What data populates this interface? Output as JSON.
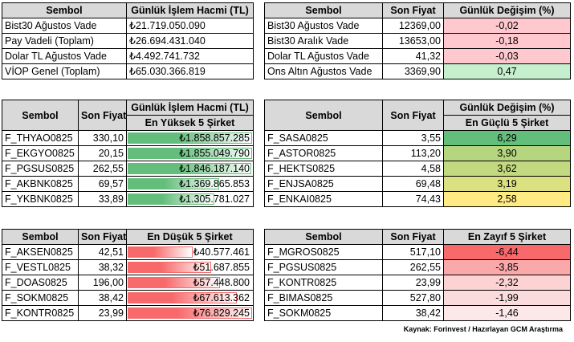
{
  "volume_table": {
    "headers": [
      "Sembol",
      "Günlük İşlem Hacmi (TL)"
    ],
    "rows": [
      [
        "Bist30 Ağustos Vade",
        "₺21.719.050.090"
      ],
      [
        "Pay Vadeli (Toplam)",
        "₺26.694.431.040"
      ],
      [
        "Dolar TL Ağustos Vade",
        "₺4.492.741.732"
      ],
      [
        "VİOP Genel (Toplam)",
        "₺65.030.366.819"
      ]
    ]
  },
  "price_table": {
    "headers": [
      "Sembol",
      "Son Fiyat",
      "Günlük Değişim (%)"
    ],
    "rows": [
      {
        "symbol": "Bist30 Ağustos Vade",
        "price": "12369,00",
        "change": "-0,02",
        "color": "#ffc7ce"
      },
      {
        "symbol": "Bist30 Aralık Vade",
        "price": "13653,00",
        "change": "-0,18",
        "color": "#ffc7ce"
      },
      {
        "symbol": "Dolar TL Ağustos Vade",
        "price": "41,32",
        "change": "-0,03",
        "color": "#ffc7ce"
      },
      {
        "symbol": "Ons Altın Ağustos Vade",
        "price": "3369,90",
        "change": "0,47",
        "color": "#c6efce"
      }
    ]
  },
  "top_volume": {
    "headers": [
      "Sembol",
      "Son Fiyat",
      "Günlük İşlem Hacmi (TL)"
    ],
    "subheader": "En Yüksek 5 Şirket",
    "bar_color": "#63be7b",
    "rows": [
      {
        "symbol": "F_THYAO0825",
        "price": "330,10",
        "volume": "₺1.858.857.285",
        "level": 1.0
      },
      {
        "symbol": "F_EKGYO0825",
        "price": "20,15",
        "volume": "₺1.855.049.790",
        "level": 0.998
      },
      {
        "symbol": "F_PGSUS0825",
        "price": "262,55",
        "volume": "₺1.846.187.140",
        "level": 0.993
      },
      {
        "symbol": "F_AKBNK0825",
        "price": "69,57",
        "volume": "₺1.369.865.853",
        "level": 0.737
      },
      {
        "symbol": "F_YKBNK0825",
        "price": "33,89",
        "volume": "₺1.305.781.027",
        "level": 0.702
      }
    ]
  },
  "top_gainers": {
    "headers": [
      "Sembol",
      "Son Fiyat",
      "Günlük Değişim (%)"
    ],
    "subheader": "En Güçlü 5 Şirket",
    "rows": [
      {
        "symbol": "F_SASA0825",
        "price": "3,55",
        "change": "6,29",
        "color": "#63be7b"
      },
      {
        "symbol": "F_ASTOR0825",
        "price": "113,20",
        "change": "3,90",
        "color": "#b5d57f"
      },
      {
        "symbol": "F_HEKTS0825",
        "price": "4,58",
        "change": "3,62",
        "color": "#c2d980"
      },
      {
        "symbol": "F_ENJSA0825",
        "price": "69,48",
        "change": "3,19",
        "color": "#dbe081"
      },
      {
        "symbol": "F_ENKAI0825",
        "price": "74,43",
        "change": "2,58",
        "color": "#ffeb84"
      }
    ]
  },
  "low_volume": {
    "headers": [
      "Sembol",
      "Son Fiyat",
      "En Düşük 5 Şirket"
    ],
    "bar_color": "#f8696b",
    "rows": [
      {
        "symbol": "F_AKSEN0825",
        "price": "42,51",
        "volume": "₺40.577.461",
        "level": 0.53
      },
      {
        "symbol": "F_VESTL0825",
        "price": "38,32",
        "volume": "₺51.687.855",
        "level": 0.673
      },
      {
        "symbol": "F_DOAS0825",
        "price": "196,00",
        "volume": "₺57.448.800",
        "level": 0.748
      },
      {
        "symbol": "F_SOKM0825",
        "price": "38,42",
        "volume": "₺67.613.362",
        "level": 0.88
      },
      {
        "symbol": "F_KONTR0825",
        "price": "23,99",
        "volume": "₺76.829.245",
        "level": 1.0
      }
    ]
  },
  "top_losers": {
    "headers": [
      "Sembol",
      "Son Fiyat",
      "En Zayıf 5 Şirket"
    ],
    "rows": [
      {
        "symbol": "F_MGROS0825",
        "price": "517,10",
        "change": "-6,44",
        "color": "#f8696b"
      },
      {
        "symbol": "F_PGSUS0825",
        "price": "262,55",
        "change": "-3,85",
        "color": "#fba8aa"
      },
      {
        "symbol": "F_KONTR0825",
        "price": "23,99",
        "change": "-2,32",
        "color": "#fcd2d3"
      },
      {
        "symbol": "F_BIMAS0825",
        "price": "527,80",
        "change": "-1,99",
        "color": "#fcdbdc"
      },
      {
        "symbol": "F_SOKM0825",
        "price": "38,42",
        "change": "-1,46",
        "color": "#fce8e9"
      }
    ]
  },
  "source": "Kaynak: Forinvest / Hazırlayan GCM Araştırma"
}
